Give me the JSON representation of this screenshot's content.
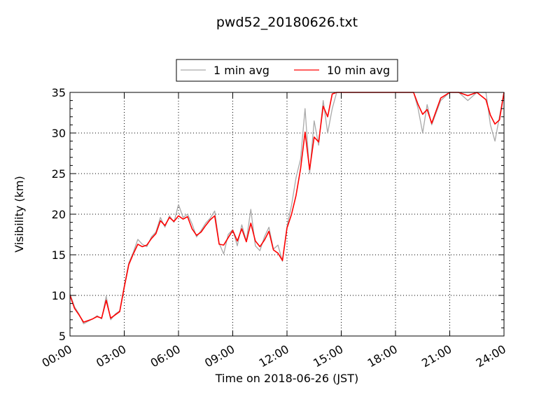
{
  "chart_data": {
    "type": "line",
    "title": "pwd52_20180626.txt",
    "xlabel": "Time on 2018-06-26 (JST)",
    "ylabel": "Visibility (km)",
    "xlim": [
      "00:00",
      "24:00"
    ],
    "ylim": [
      5,
      35
    ],
    "x_ticks": [
      "00:00",
      "03:00",
      "06:00",
      "09:00",
      "12:00",
      "15:00",
      "18:00",
      "21:00",
      "24:00"
    ],
    "y_ticks": [
      5,
      10,
      15,
      20,
      25,
      30,
      35
    ],
    "grid": true,
    "legend_position": "top-center, above plot",
    "x_units": "hours",
    "series": [
      {
        "name": "1 min avg",
        "color": "#a9a9a9",
        "x": [
          0,
          0.25,
          0.5,
          0.75,
          1,
          1.25,
          1.5,
          1.75,
          2,
          2.25,
          2.5,
          2.75,
          3,
          3.25,
          3.5,
          3.75,
          4,
          4.25,
          4.5,
          4.75,
          5,
          5.25,
          5.5,
          5.75,
          6,
          6.25,
          6.5,
          6.75,
          7,
          7.25,
          7.5,
          7.75,
          8,
          8.25,
          8.5,
          8.75,
          9,
          9.25,
          9.5,
          9.75,
          10,
          10.25,
          10.5,
          10.75,
          11,
          11.25,
          11.5,
          11.75,
          12,
          12.25,
          12.5,
          12.75,
          13,
          13.25,
          13.5,
          13.75,
          14,
          14.25,
          14.5,
          14.75,
          15,
          15.5,
          16,
          16.5,
          17,
          17.5,
          18,
          18.5,
          19,
          19.25,
          19.5,
          19.75,
          20,
          20.5,
          21,
          21.5,
          22,
          22.5,
          23,
          23.25,
          23.5,
          23.75,
          24
        ],
        "values": [
          10.2,
          8.6,
          7.7,
          6.5,
          6.8,
          7.1,
          7.5,
          7.1,
          9.9,
          7.0,
          7.7,
          8.1,
          11.2,
          14.0,
          15.3,
          16.9,
          16.3,
          16.0,
          17.2,
          17.8,
          19.6,
          18.4,
          19.8,
          19.0,
          21.2,
          19.6,
          20.0,
          18.8,
          17.2,
          18.0,
          18.9,
          19.5,
          20.4,
          16.4,
          15.1,
          17.5,
          18.1,
          16.1,
          18.7,
          16.7,
          20.6,
          16.1,
          15.5,
          17.2,
          18.4,
          15.7,
          16.2,
          14.2,
          18.5,
          21.1,
          24.5,
          26.8,
          33.0,
          25.0,
          31.5,
          28.5,
          34.0,
          30.0,
          33.0,
          35.0,
          35.0,
          35.0,
          35.0,
          35.0,
          35.0,
          35.0,
          35.0,
          35.0,
          35.0,
          33.0,
          30.0,
          33.5,
          31.0,
          34.0,
          35.0,
          35.0,
          34.0,
          35.0,
          35.0,
          31.0,
          29.0,
          32.0,
          35.0
        ]
      },
      {
        "name": "10 min avg",
        "color": "#ff0000",
        "x": [
          0,
          0.25,
          0.5,
          0.75,
          1,
          1.25,
          1.5,
          1.75,
          2,
          2.25,
          2.5,
          2.75,
          3,
          3.25,
          3.5,
          3.75,
          4,
          4.25,
          4.5,
          4.75,
          5,
          5.25,
          5.5,
          5.75,
          6,
          6.25,
          6.5,
          6.75,
          7,
          7.25,
          7.5,
          7.75,
          8,
          8.25,
          8.5,
          8.75,
          9,
          9.25,
          9.5,
          9.75,
          10,
          10.25,
          10.5,
          10.75,
          11,
          11.25,
          11.5,
          11.75,
          12,
          12.25,
          12.5,
          12.75,
          13,
          13.25,
          13.5,
          13.75,
          14,
          14.25,
          14.5,
          14.75,
          15,
          15.5,
          16,
          16.5,
          17,
          17.5,
          18,
          18.5,
          19,
          19.25,
          19.5,
          19.75,
          20,
          20.5,
          21,
          21.5,
          22,
          22.5,
          23,
          23.25,
          23.5,
          23.75,
          24
        ],
        "values": [
          10.0,
          8.4,
          7.6,
          6.7,
          6.9,
          7.1,
          7.4,
          7.2,
          9.4,
          7.2,
          7.6,
          8.0,
          11.0,
          13.8,
          15.1,
          16.3,
          16.0,
          16.2,
          17.0,
          17.6,
          19.2,
          18.6,
          19.6,
          19.1,
          19.8,
          19.4,
          19.7,
          18.2,
          17.4,
          17.8,
          18.6,
          19.3,
          19.8,
          16.3,
          16.2,
          17.1,
          18.0,
          16.7,
          18.2,
          16.6,
          18.9,
          16.7,
          16.0,
          16.8,
          17.9,
          15.6,
          15.2,
          14.3,
          18.3,
          20.0,
          22.3,
          25.6,
          30.1,
          25.5,
          29.5,
          28.9,
          33.3,
          32.0,
          34.8,
          35.0,
          35.0,
          35.0,
          35.0,
          35.0,
          35.0,
          35.0,
          35.0,
          35.0,
          35.0,
          33.5,
          32.3,
          32.9,
          31.2,
          34.3,
          35.0,
          35.0,
          34.6,
          35.0,
          34.1,
          32.2,
          31.1,
          31.6,
          35.0
        ]
      }
    ]
  }
}
